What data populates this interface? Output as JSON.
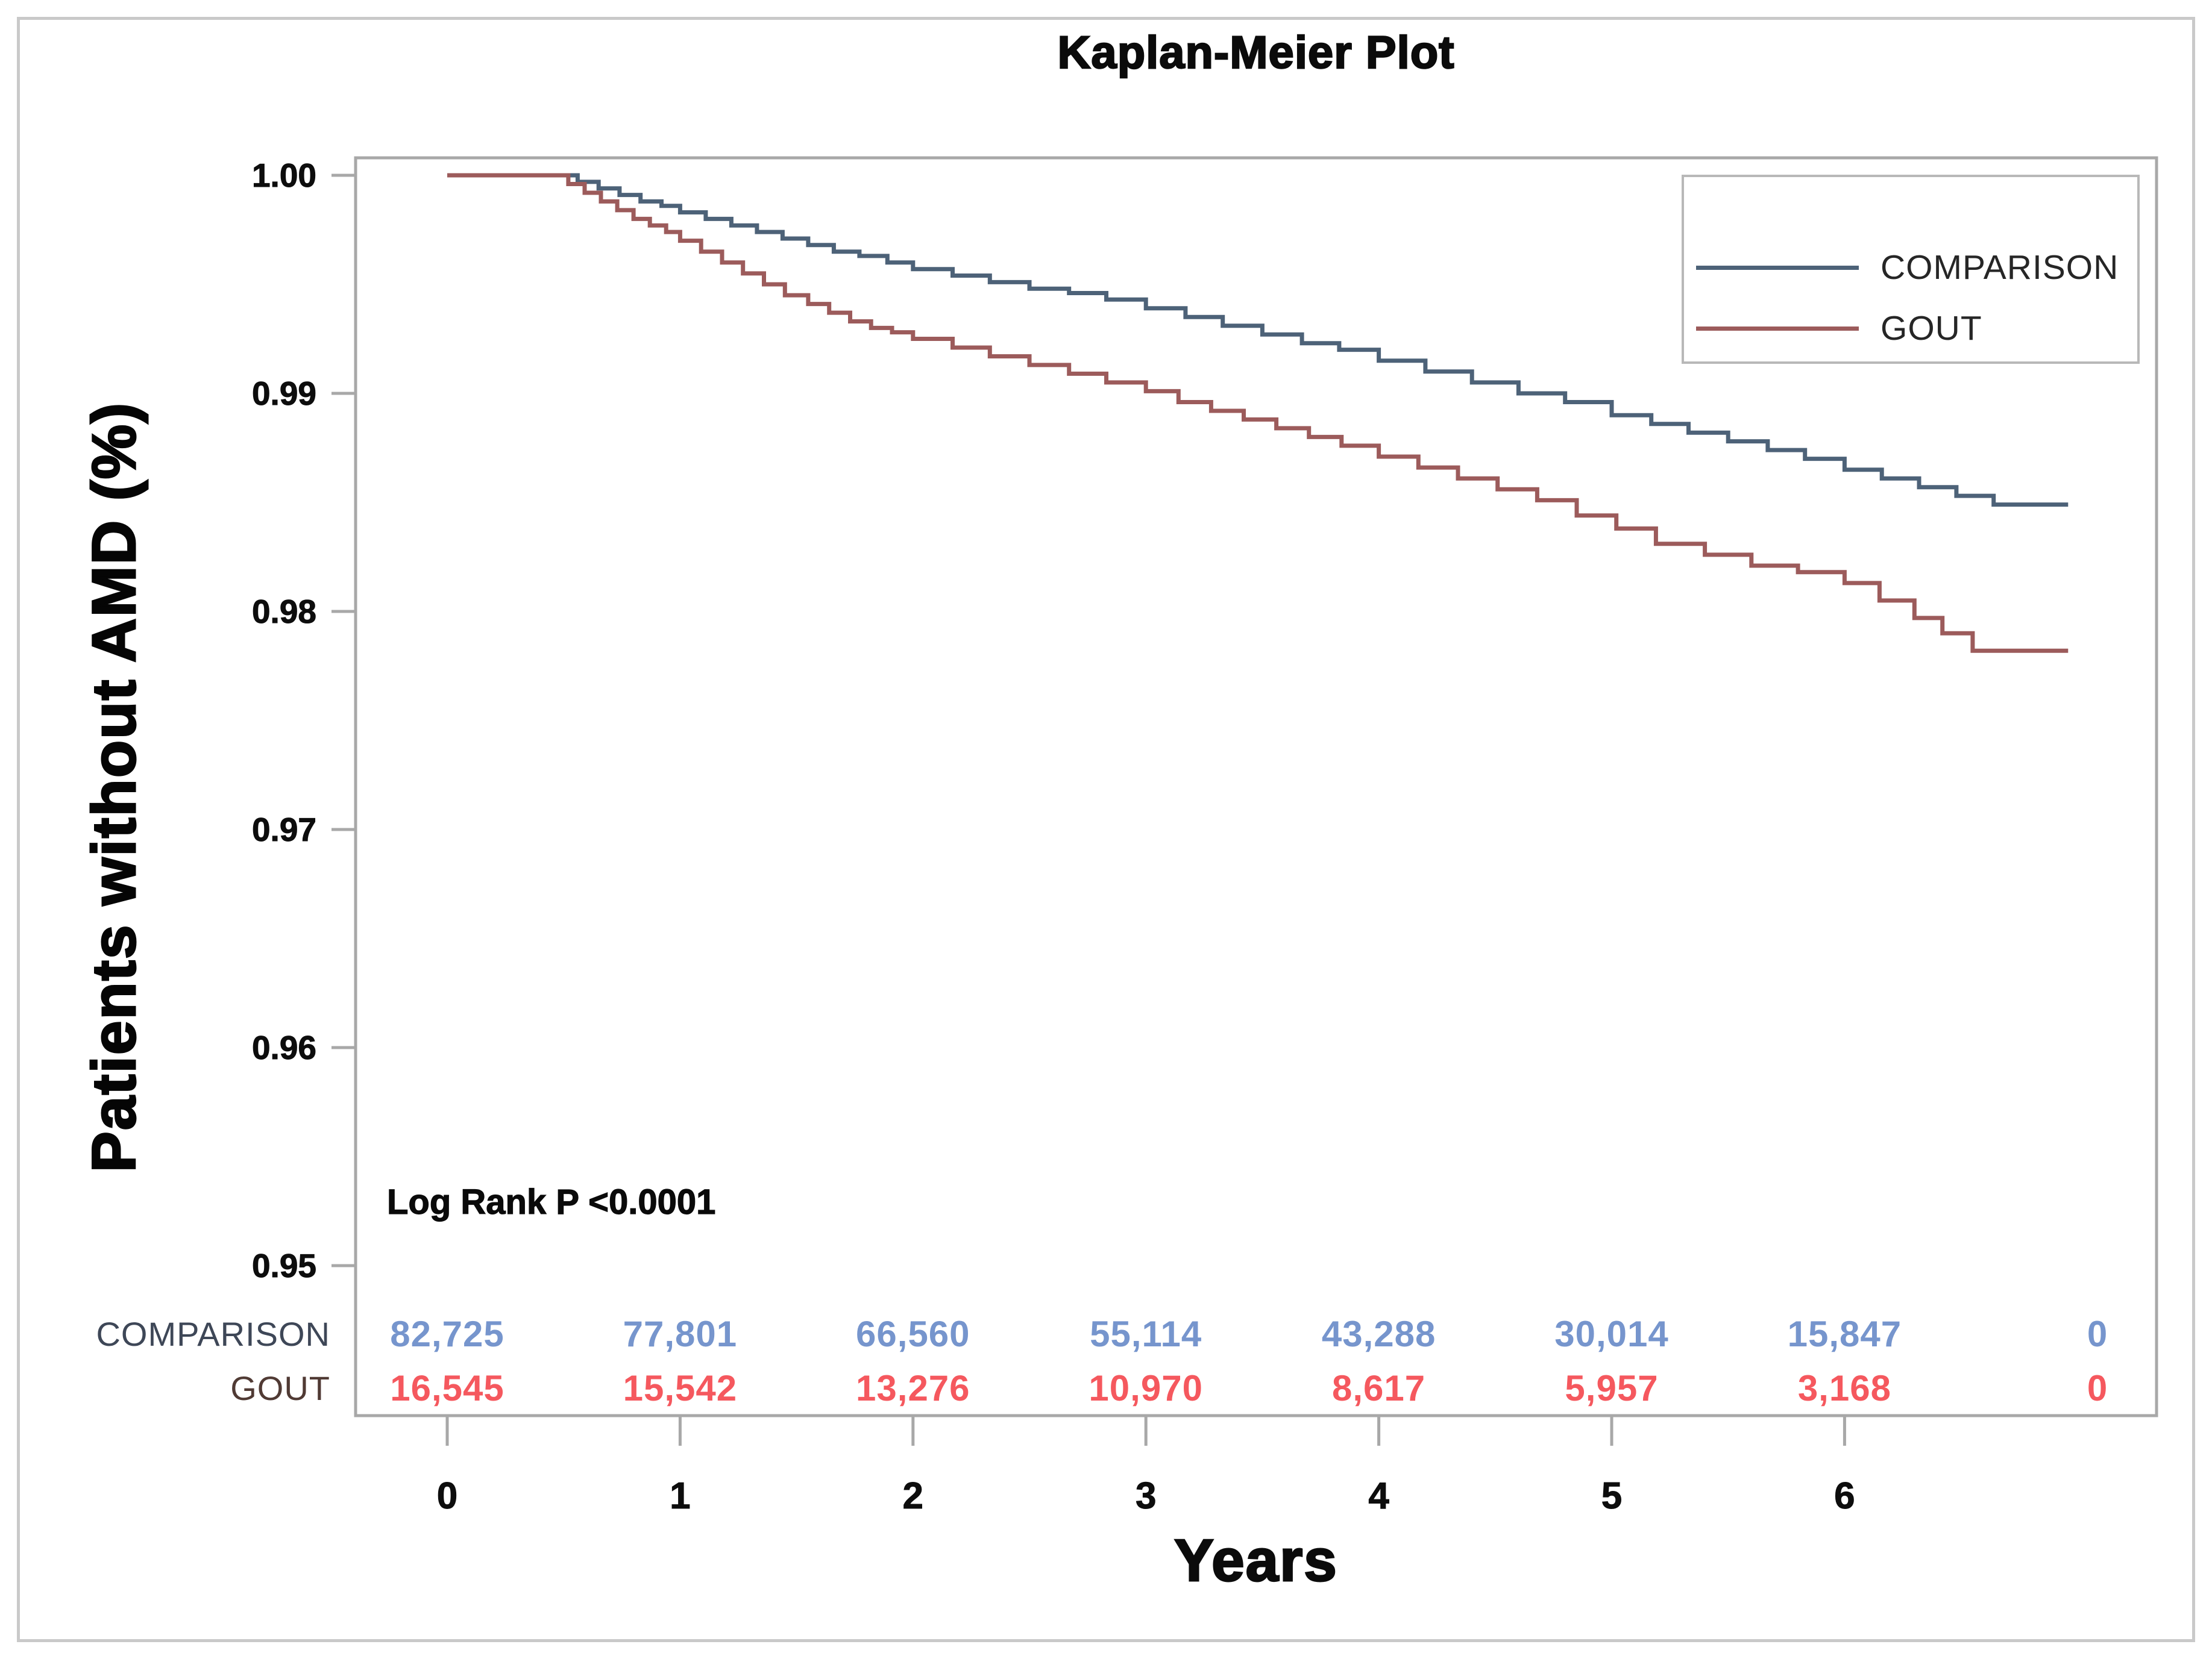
{
  "title": "Kaplan-Meier Plot",
  "y_axis": {
    "label": "Patients without AMD (%)",
    "ticks": [
      "1.00",
      "0.99",
      "0.98",
      "0.97",
      "0.96",
      "0.95"
    ],
    "tick_values": [
      1.0,
      0.99,
      0.98,
      0.97,
      0.96,
      0.95
    ]
  },
  "x_axis": {
    "label": "Years",
    "ticks": [
      "0",
      "1",
      "2",
      "3",
      "4",
      "5",
      "6"
    ],
    "tick_values": [
      0,
      1,
      2,
      3,
      4,
      5,
      6
    ]
  },
  "annotation": {
    "log_rank": "Log Rank P <0.0001"
  },
  "legend": {
    "items": [
      {
        "label": "COMPARISON",
        "color": "#4d6278"
      },
      {
        "label": "GOUT",
        "color": "#9c5b5b"
      }
    ]
  },
  "risk_table": {
    "rows": [
      {
        "label": "COMPARISON",
        "label_color": "#3e4757",
        "value_color": "#7695cd",
        "values": [
          "82,725",
          "77,801",
          "66,560",
          "55,114",
          "43,288",
          "30,014",
          "15,847",
          "0"
        ]
      },
      {
        "label": "GOUT",
        "label_color": "#503a34",
        "value_color": "#f5585e",
        "values": [
          "16,545",
          "15,542",
          "13,276",
          "10,970",
          "8,617",
          "5,957",
          "3,168",
          "0"
        ]
      }
    ]
  },
  "chart_data": {
    "type": "line",
    "subtype": "kaplan-meier-step",
    "title": "Kaplan-Meier Plot",
    "xlabel": "Years",
    "ylabel": "Patients without AMD (%)",
    "xlim": [
      0,
      7.34
    ],
    "ylim": [
      0.943,
      1.001
    ],
    "x_ticks": [
      0,
      1,
      2,
      3,
      4,
      5,
      6
    ],
    "y_ticks": [
      1.0,
      0.99,
      0.98,
      0.97,
      0.96,
      0.95
    ],
    "grid": false,
    "legend_position": "top-right",
    "annotation": "Log Rank P <0.0001",
    "series": [
      {
        "name": "COMPARISON",
        "color": "#4d6278",
        "steps": [
          [
            0,
            1.0
          ],
          [
            0.56,
            0.9997
          ],
          [
            0.65,
            0.9994
          ],
          [
            0.74,
            0.9991
          ],
          [
            0.83,
            0.9988
          ],
          [
            0.92,
            0.9986
          ],
          [
            1.0,
            0.9983
          ],
          [
            1.11,
            0.998
          ],
          [
            1.22,
            0.9977
          ],
          [
            1.33,
            0.9974
          ],
          [
            1.44,
            0.9971
          ],
          [
            1.55,
            0.9968
          ],
          [
            1.66,
            0.9965
          ],
          [
            1.77,
            0.9963
          ],
          [
            1.89,
            0.996
          ],
          [
            2.0,
            0.9957
          ],
          [
            2.17,
            0.9954
          ],
          [
            2.33,
            0.9951
          ],
          [
            2.5,
            0.9948
          ],
          [
            2.67,
            0.9946
          ],
          [
            2.83,
            0.9943
          ],
          [
            3.0,
            0.9939
          ],
          [
            3.17,
            0.9935
          ],
          [
            3.33,
            0.9931
          ],
          [
            3.5,
            0.9927
          ],
          [
            3.67,
            0.9923
          ],
          [
            3.83,
            0.992
          ],
          [
            4.0,
            0.9915
          ],
          [
            4.2,
            0.991
          ],
          [
            4.4,
            0.9905
          ],
          [
            4.6,
            0.99
          ],
          [
            4.8,
            0.9896
          ],
          [
            5.0,
            0.989
          ],
          [
            5.17,
            0.9886
          ],
          [
            5.33,
            0.9882
          ],
          [
            5.5,
            0.9878
          ],
          [
            5.67,
            0.9874
          ],
          [
            5.83,
            0.987
          ],
          [
            6.0,
            0.9865
          ],
          [
            6.16,
            0.9861
          ],
          [
            6.32,
            0.9857
          ],
          [
            6.48,
            0.9853
          ],
          [
            6.64,
            0.9849
          ],
          [
            6.96,
            0.9849
          ]
        ]
      },
      {
        "name": "GOUT",
        "color": "#9c5b5b",
        "steps": [
          [
            0,
            1.0
          ],
          [
            0.52,
            0.9996
          ],
          [
            0.59,
            0.9992
          ],
          [
            0.66,
            0.9988
          ],
          [
            0.73,
            0.9984
          ],
          [
            0.8,
            0.998
          ],
          [
            0.87,
            0.9977
          ],
          [
            0.94,
            0.9974
          ],
          [
            1.0,
            0.997
          ],
          [
            1.09,
            0.9965
          ],
          [
            1.18,
            0.996
          ],
          [
            1.27,
            0.9955
          ],
          [
            1.36,
            0.995
          ],
          [
            1.45,
            0.9945
          ],
          [
            1.55,
            0.9941
          ],
          [
            1.64,
            0.9937
          ],
          [
            1.73,
            0.9933
          ],
          [
            1.82,
            0.993
          ],
          [
            1.91,
            0.9928
          ],
          [
            2.0,
            0.9925
          ],
          [
            2.17,
            0.9921
          ],
          [
            2.33,
            0.9917
          ],
          [
            2.5,
            0.9913
          ],
          [
            2.67,
            0.9909
          ],
          [
            2.83,
            0.9905
          ],
          [
            3.0,
            0.9901
          ],
          [
            3.14,
            0.9896
          ],
          [
            3.28,
            0.9892
          ],
          [
            3.42,
            0.9888
          ],
          [
            3.56,
            0.9884
          ],
          [
            3.7,
            0.988
          ],
          [
            3.84,
            0.9876
          ],
          [
            4.0,
            0.9871
          ],
          [
            4.17,
            0.9866
          ],
          [
            4.34,
            0.9861
          ],
          [
            4.51,
            0.9856
          ],
          [
            4.68,
            0.9851
          ],
          [
            4.85,
            0.9844
          ],
          [
            5.02,
            0.9838
          ],
          [
            5.19,
            0.9831
          ],
          [
            5.4,
            0.9826
          ],
          [
            5.6,
            0.9821
          ],
          [
            5.8,
            0.9818
          ],
          [
            6.0,
            0.9813
          ],
          [
            6.15,
            0.9805
          ],
          [
            6.3,
            0.9797
          ],
          [
            6.42,
            0.979
          ],
          [
            6.55,
            0.9782
          ],
          [
            6.96,
            0.9782
          ]
        ]
      }
    ],
    "at_risk_label": "numbers at risk shown below x-axis"
  },
  "colors": {
    "axis_line": "#a8a8a8",
    "tick_text": "#0d0d0d",
    "legend_border": "#b8b8b8",
    "legend_text": "#262626",
    "outer_border": "#c9c9c9"
  }
}
